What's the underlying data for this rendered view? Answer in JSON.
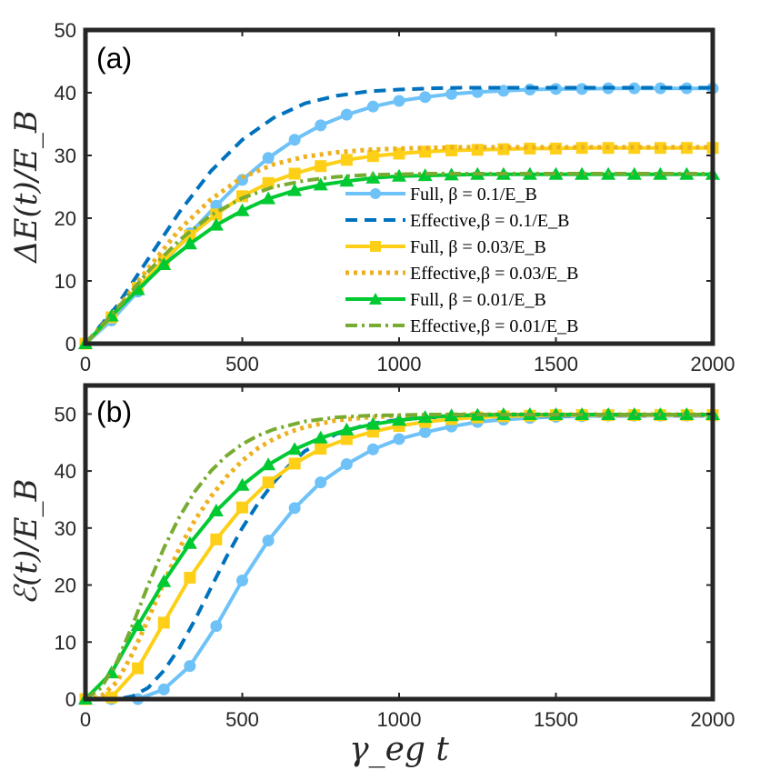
{
  "chart_data": [
    {
      "type": "line",
      "panel_label": "(a)",
      "ylabel": "ΔE(t)/E_B",
      "xlabel": "",
      "xlim": [
        0,
        2000
      ],
      "ylim": [
        0,
        50
      ],
      "xticks": [
        "0",
        "500",
        "1000",
        "1500",
        "2000"
      ],
      "yticks": [
        "0",
        "10",
        "20",
        "30",
        "40",
        "50"
      ],
      "grid": false,
      "legend_position": "center-right",
      "series": [
        {
          "name": "Full, β = 0.1/E_B",
          "color": "#6EC2F7",
          "style": "solid",
          "marker": "circle",
          "x": [
            0,
            83,
            167,
            250,
            333,
            417,
            500,
            583,
            667,
            750,
            833,
            917,
            1000,
            1083,
            1167,
            1250,
            1333,
            1417,
            1500,
            1583,
            1667,
            1750,
            1833,
            1917,
            2000
          ],
          "y": [
            0,
            3.7,
            8.3,
            13.0,
            17.6,
            22.0,
            26.1,
            29.6,
            32.5,
            34.8,
            36.5,
            37.8,
            38.7,
            39.3,
            39.8,
            40.1,
            40.3,
            40.5,
            40.6,
            40.6,
            40.7,
            40.7,
            40.7,
            40.7,
            40.7
          ]
        },
        {
          "name": "Effective,β = 0.1/E_B",
          "color": "#0072BD",
          "style": "dashed",
          "marker": "none",
          "x": [
            0,
            100,
            200,
            300,
            400,
            500,
            600,
            700,
            800,
            900,
            1000,
            1100,
            1200,
            1300,
            1400,
            1500,
            1600,
            1700,
            1800,
            1900,
            2000
          ],
          "y": [
            0,
            6,
            13.5,
            21,
            27.5,
            32.5,
            36,
            38.3,
            39.5,
            40.2,
            40.5,
            40.7,
            40.8,
            40.8,
            40.8,
            40.8,
            40.8,
            40.8,
            40.8,
            40.8,
            40.8
          ]
        },
        {
          "name": "Full, β = 0.03/E_B",
          "color": "#FDD017",
          "style": "solid",
          "marker": "square",
          "x": [
            0,
            83,
            167,
            250,
            333,
            417,
            500,
            583,
            667,
            750,
            833,
            917,
            1000,
            1083,
            1167,
            1250,
            1333,
            1417,
            1500,
            1583,
            1667,
            1750,
            1833,
            1917,
            2000
          ],
          "y": [
            0,
            4.2,
            8.9,
            13.3,
            17.2,
            20.6,
            23.5,
            25.6,
            27.1,
            28.3,
            29.3,
            29.9,
            30.3,
            30.6,
            30.8,
            30.9,
            31.0,
            31.1,
            31.1,
            31.2,
            31.2,
            31.2,
            31.2,
            31.2,
            31.2
          ]
        },
        {
          "name": "Effective,β = 0.03/E_B",
          "color": "#EDB120",
          "style": "dotted",
          "marker": "none",
          "x": [
            0,
            100,
            200,
            300,
            400,
            500,
            600,
            700,
            800,
            900,
            1000,
            1100,
            1200,
            1300,
            1400,
            1500,
            1600,
            1700,
            1800,
            1900,
            2000
          ],
          "y": [
            0,
            5.5,
            12,
            18.2,
            23,
            26.5,
            28.6,
            29.8,
            30.5,
            30.9,
            31.1,
            31.2,
            31.3,
            31.3,
            31.3,
            31.3,
            31.3,
            31.3,
            31.3,
            31.3,
            31.3
          ]
        },
        {
          "name": "Full, β = 0.01/E_B",
          "color": "#00C931",
          "style": "solid",
          "marker": "triangle",
          "x": [
            0,
            83,
            167,
            250,
            333,
            417,
            500,
            583,
            667,
            750,
            833,
            917,
            1000,
            1083,
            1167,
            1250,
            1333,
            1417,
            1500,
            1583,
            1667,
            1750,
            1833,
            1917,
            2000
          ],
          "y": [
            0,
            4.4,
            8.6,
            12.6,
            15.9,
            18.9,
            21.2,
            23.1,
            24.4,
            25.3,
            25.9,
            26.4,
            26.7,
            26.8,
            26.9,
            27.0,
            27.0,
            27.0,
            27.0,
            27.0,
            27.0,
            27.0,
            27.0,
            27.0,
            27.0
          ]
        },
        {
          "name": "Effective,β = 0.01/E_B",
          "color": "#77AC30",
          "style": "dashdot",
          "marker": "none",
          "x": [
            0,
            100,
            200,
            300,
            400,
            500,
            600,
            700,
            800,
            900,
            1000,
            1100,
            1200,
            1300,
            1400,
            1500,
            1600,
            1700,
            1800,
            1900,
            2000
          ],
          "y": [
            0,
            5.5,
            11.5,
            16.5,
            20.5,
            23.2,
            25,
            26,
            26.6,
            26.9,
            27,
            27.1,
            27.1,
            27.1,
            27.1,
            27.1,
            27.1,
            27.1,
            27.1,
            27.1,
            27.1
          ]
        }
      ]
    },
    {
      "type": "line",
      "panel_label": "(b)",
      "ylabel": "ℰ(t)/E_B",
      "xlabel": "γ_eg t",
      "xlim": [
        0,
        2000
      ],
      "ylim": [
        0,
        55
      ],
      "xticks": [
        "0",
        "500",
        "1000",
        "1500",
        "2000"
      ],
      "yticks": [
        "0",
        "10",
        "20",
        "30",
        "40",
        "50"
      ],
      "grid": false,
      "series": [
        {
          "name": "Full, β = 0.1/E_B",
          "color": "#6EC2F7",
          "style": "solid",
          "marker": "circle",
          "x": [
            0,
            83,
            167,
            250,
            333,
            417,
            500,
            583,
            667,
            750,
            833,
            917,
            1000,
            1083,
            1167,
            1250,
            1333,
            1417,
            1500,
            1583,
            1667,
            1750,
            1833,
            1917,
            2000
          ],
          "y": [
            0,
            0,
            0,
            1.7,
            5.8,
            12.8,
            20.8,
            27.8,
            33.5,
            38.0,
            41.2,
            43.8,
            45.6,
            46.8,
            47.8,
            48.6,
            49.0,
            49.3,
            49.5,
            49.6,
            49.7,
            49.7,
            49.7,
            49.7,
            49.7
          ]
        },
        {
          "name": "Effective,β = 0.1/E_B",
          "color": "#0072BD",
          "style": "dashed",
          "marker": "none",
          "x": [
            0,
            100,
            150,
            200,
            250,
            300,
            350,
            400,
            450,
            500,
            550,
            600,
            650,
            700,
            800,
            900,
            1000,
            1100,
            1200,
            1300,
            1400,
            1500,
            1600,
            1700,
            1800,
            1900,
            2000
          ],
          "y": [
            0,
            0,
            0.5,
            2,
            5,
            9,
            14,
            19.5,
            25,
            30,
            34.3,
            38,
            41,
            43.5,
            46.5,
            48.2,
            49,
            49.4,
            49.6,
            49.7,
            49.7,
            49.7,
            49.7,
            49.7,
            49.7,
            49.7,
            49.7
          ]
        },
        {
          "name": "Full, β = 0.03/E_B",
          "color": "#FDD017",
          "style": "solid",
          "marker": "square",
          "x": [
            0,
            83,
            167,
            250,
            333,
            417,
            500,
            583,
            667,
            750,
            833,
            917,
            1000,
            1083,
            1167,
            1250,
            1333,
            1417,
            1500,
            1583,
            1667,
            1750,
            1833,
            1917,
            2000
          ],
          "y": [
            0,
            0.3,
            5.4,
            13.4,
            21.3,
            28.0,
            33.6,
            38.0,
            41.3,
            43.9,
            45.6,
            46.9,
            47.9,
            48.6,
            49.1,
            49.4,
            49.6,
            49.7,
            49.8,
            49.8,
            49.8,
            49.8,
            49.8,
            49.8,
            49.8
          ]
        },
        {
          "name": "Effective,β = 0.03/E_B",
          "color": "#EDB120",
          "style": "dotted",
          "marker": "none",
          "x": [
            0,
            50,
            100,
            150,
            200,
            250,
            300,
            350,
            400,
            450,
            500,
            550,
            600,
            650,
            700,
            800,
            900,
            1000,
            1100,
            1200,
            1400,
            1600,
            1800,
            2000
          ],
          "y": [
            0,
            0.5,
            3,
            8,
            14,
            20.5,
            26.5,
            31.5,
            35.5,
            39,
            41.8,
            44,
            45.6,
            46.8,
            47.7,
            48.9,
            49.4,
            49.7,
            49.8,
            49.9,
            49.9,
            49.9,
            49.9,
            49.9
          ]
        },
        {
          "name": "Full, β = 0.01/E_B",
          "color": "#00C931",
          "style": "solid",
          "marker": "triangle",
          "x": [
            0,
            83,
            167,
            250,
            333,
            417,
            500,
            583,
            667,
            750,
            833,
            917,
            1000,
            1083,
            1167,
            1250,
            1333,
            1417,
            1500,
            1583,
            1667,
            1750,
            1833,
            1917,
            2000
          ],
          "y": [
            0,
            4.6,
            12.9,
            20.6,
            27.3,
            33.0,
            37.5,
            41.1,
            43.8,
            45.8,
            47.2,
            48.2,
            48.9,
            49.4,
            49.7,
            49.8,
            49.9,
            49.9,
            49.9,
            49.9,
            49.9,
            49.9,
            49.9,
            49.9,
            49.9
          ]
        },
        {
          "name": "Effective,β = 0.01/E_B",
          "color": "#77AC30",
          "style": "dashdot",
          "marker": "none",
          "x": [
            0,
            50,
            100,
            150,
            200,
            250,
            300,
            350,
            400,
            450,
            500,
            550,
            600,
            700,
            800,
            900,
            1000,
            1100,
            1200,
            1400,
            1600,
            1800,
            2000
          ],
          "y": [
            0,
            2,
            6.5,
            13,
            20,
            26.5,
            32,
            36.5,
            40,
            42.7,
            44.7,
            46.2,
            47.3,
            48.7,
            49.4,
            49.7,
            49.8,
            49.9,
            49.9,
            49.9,
            49.9,
            49.9,
            49.9
          ]
        }
      ]
    }
  ]
}
